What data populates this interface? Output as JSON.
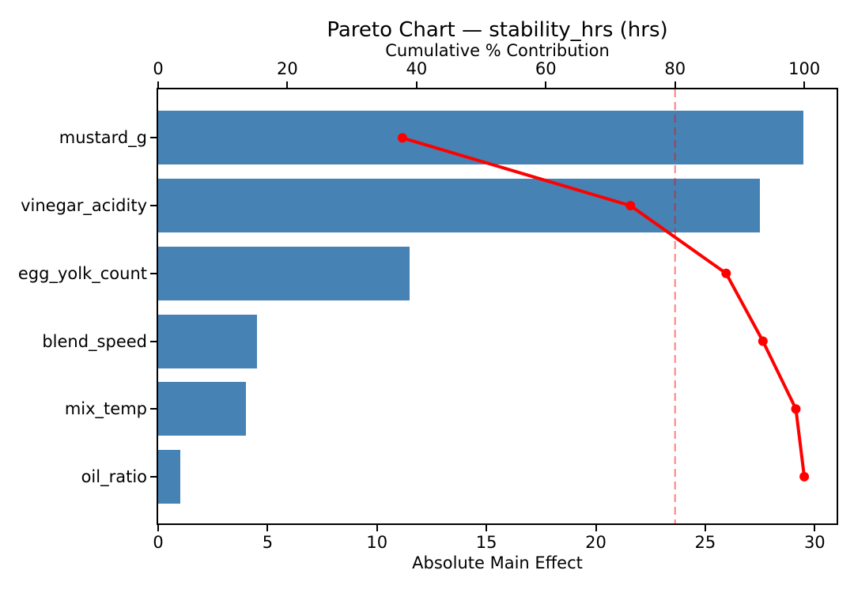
{
  "chart_data": {
    "type": "pareto",
    "title": "Pareto Chart — stability_hrs (hrs)",
    "top_axis_label": "Cumulative % Contribution",
    "bottom_axis_label": "Absolute Main Effect",
    "categories": [
      "mustard_g",
      "vinegar_acidity",
      "egg_yolk_count",
      "blend_speed",
      "mix_temp",
      "oil_ratio"
    ],
    "bar_values": [
      29.5,
      27.5,
      11.5,
      4.5,
      4.0,
      1.0
    ],
    "cumulative_pct": [
      37.8,
      73.1,
      87.9,
      93.6,
      98.7,
      100.0
    ],
    "threshold_pct": 80,
    "bottom_ticks": [
      0,
      5,
      10,
      15,
      20,
      25,
      30
    ],
    "top_ticks": [
      0,
      20,
      40,
      60,
      80,
      100
    ],
    "bottom_xlim": [
      0,
      31
    ],
    "top_xlim": [
      0,
      105
    ],
    "grid": false,
    "legend": false,
    "colors": {
      "bar": "#4682B4",
      "line": "#FF0000",
      "marker": "#FF0000",
      "threshold": "#FF0000",
      "axis": "#000000",
      "text": "#000000",
      "background": "#FFFFFF"
    }
  }
}
